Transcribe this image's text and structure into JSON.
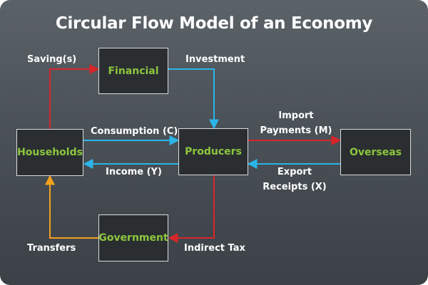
{
  "title": "Circular Flow Model of an Economy",
  "colors": {
    "background": "#4f565c",
    "node_fill": "#2a2e31",
    "node_border": "#d9dcde",
    "node_text": "#8dc63f",
    "arrow_red": "#d6262b",
    "arrow_blue": "#2bb4e8",
    "arrow_orange": "#f2a11d",
    "label_text": "#ffffff"
  },
  "nodes": {
    "financial": "Financial",
    "households": "Households",
    "producers": "Producers",
    "overseas": "Overseas",
    "government": "Government"
  },
  "flows": {
    "savings": "Saving(s)",
    "investment": "Investment",
    "consumption": "Consumption (C)",
    "income": "Income (Y)",
    "import_line1": "Import",
    "import_line2": "Payments (M)",
    "export_line1": "Export",
    "export_line2": "Receipts (X)",
    "transfers": "Transfers",
    "indirect_tax": "Indirect Tax"
  }
}
